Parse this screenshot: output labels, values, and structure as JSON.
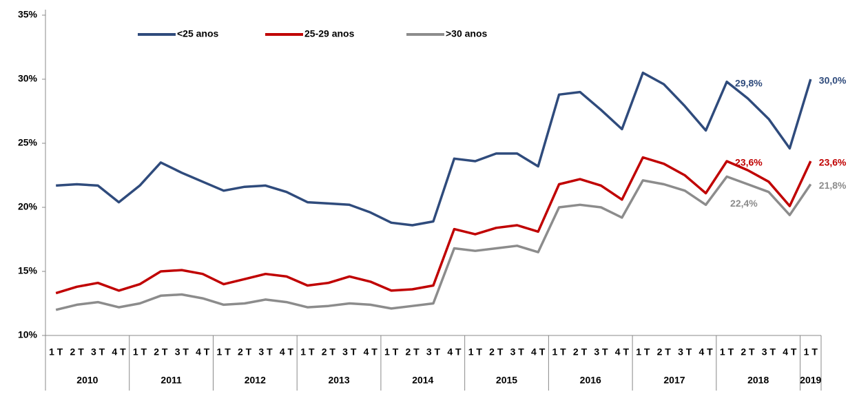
{
  "chart_data": {
    "type": "line",
    "categories": [
      "1 T",
      "2 T",
      "3 T",
      "4 T",
      "1 T",
      "2 T",
      "3 T",
      "4 T",
      "1 T",
      "2 T",
      "3 T",
      "4 T",
      "1 T",
      "2 T",
      "3 T",
      "4 T",
      "1 T",
      "2 T",
      "3 T",
      "4 T",
      "1 T",
      "2 T",
      "3 T",
      "4 T",
      "1 T",
      "2 T",
      "3 T",
      "4 T",
      "1 T",
      "2 T",
      "3 T",
      "4 T",
      "1 T",
      "2 T",
      "3 T",
      "4 T",
      "1 T"
    ],
    "years": [
      "2010",
      "2011",
      "2012",
      "2013",
      "2014",
      "2015",
      "2016",
      "2017",
      "2018",
      "2019"
    ],
    "ylim": [
      10,
      35
    ],
    "yticks": [
      {
        "value": 10,
        "label": "10%"
      },
      {
        "value": 15,
        "label": "15%"
      },
      {
        "value": 20,
        "label": "20%"
      },
      {
        "value": 25,
        "label": "25%"
      },
      {
        "value": 30,
        "label": "30%"
      },
      {
        "value": 35,
        "label": "35%"
      }
    ],
    "grid": false,
    "legend": "top",
    "series": [
      {
        "name": "<25 anos",
        "color": "#2f4b7c",
        "values": [
          21.7,
          21.8,
          21.7,
          20.4,
          21.7,
          23.5,
          22.7,
          22.0,
          21.3,
          21.6,
          21.7,
          21.2,
          20.4,
          20.3,
          20.2,
          19.6,
          18.8,
          18.6,
          18.9,
          23.8,
          23.6,
          24.2,
          24.2,
          23.2,
          28.8,
          29.0,
          27.6,
          26.1,
          30.5,
          29.6,
          27.9,
          26.0,
          29.8,
          28.5,
          26.9,
          24.6,
          30.0
        ],
        "value_labels": [
          null,
          null,
          null,
          null,
          null,
          null,
          null,
          null,
          null,
          null,
          null,
          null,
          null,
          null,
          null,
          null,
          null,
          null,
          null,
          null,
          null,
          null,
          null,
          null,
          null,
          null,
          null,
          null,
          null,
          null,
          null,
          null,
          "29,8%",
          null,
          null,
          null,
          "30,0%"
        ]
      },
      {
        "name": "25-29 anos",
        "color": "#c00000",
        "values": [
          13.3,
          13.8,
          14.1,
          13.5,
          14.0,
          15.0,
          15.1,
          14.8,
          14.0,
          14.4,
          14.8,
          14.6,
          13.9,
          14.1,
          14.6,
          14.2,
          13.5,
          13.6,
          13.9,
          18.3,
          17.9,
          18.4,
          18.6,
          18.1,
          21.8,
          22.2,
          21.7,
          20.6,
          23.9,
          23.4,
          22.5,
          21.1,
          23.6,
          22.9,
          22.0,
          20.1,
          23.6
        ],
        "value_labels": [
          null,
          null,
          null,
          null,
          null,
          null,
          null,
          null,
          null,
          null,
          null,
          null,
          null,
          null,
          null,
          null,
          null,
          null,
          null,
          null,
          null,
          null,
          null,
          null,
          null,
          null,
          null,
          null,
          null,
          null,
          null,
          null,
          "23,6%",
          null,
          null,
          null,
          "23,6%"
        ]
      },
      {
        "name": ">30 anos",
        "color": "#8c8c8c",
        "values": [
          12.0,
          12.4,
          12.6,
          12.2,
          12.5,
          13.1,
          13.2,
          12.9,
          12.4,
          12.5,
          12.8,
          12.6,
          12.2,
          12.3,
          12.5,
          12.4,
          12.1,
          12.3,
          12.5,
          16.8,
          16.6,
          16.8,
          17.0,
          16.5,
          20.0,
          20.2,
          20.0,
          19.2,
          22.1,
          21.8,
          21.3,
          20.2,
          22.4,
          21.8,
          21.2,
          19.4,
          21.8
        ],
        "value_labels": [
          null,
          null,
          null,
          null,
          null,
          null,
          null,
          null,
          null,
          null,
          null,
          null,
          null,
          null,
          null,
          null,
          null,
          null,
          null,
          null,
          null,
          null,
          null,
          null,
          null,
          null,
          null,
          null,
          null,
          null,
          null,
          null,
          "22,4%",
          null,
          null,
          null,
          "21,8%"
        ]
      }
    ]
  }
}
